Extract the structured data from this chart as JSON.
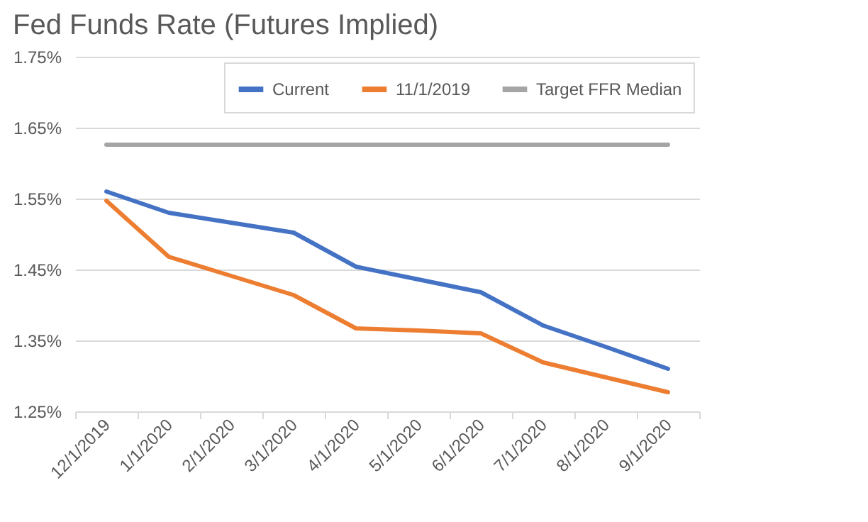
{
  "chart_data": {
    "type": "line",
    "title": "Fed Funds Rate (Futures Implied)",
    "categories": [
      "12/1/2019",
      "1/1/2020",
      "2/1/2020",
      "3/1/2020",
      "4/1/2020",
      "5/1/2020",
      "6/1/2020",
      "7/1/2020",
      "8/1/2020",
      "9/1/2020"
    ],
    "series": [
      {
        "name": "Current",
        "color": "#4472c4",
        "values": [
          1.56,
          1.53,
          1.516,
          1.502,
          1.454,
          1.436,
          1.418,
          1.371,
          1.341,
          1.31
        ]
      },
      {
        "name": "11/1/2019",
        "color": "#ed7d31",
        "values": [
          1.547,
          1.468,
          1.441,
          1.414,
          1.367,
          1.364,
          1.36,
          1.319,
          1.298,
          1.277
        ]
      },
      {
        "name": "Target FFR Median",
        "color": "#a5a5a5",
        "values": [
          1.626,
          1.626,
          1.626,
          1.626,
          1.626,
          1.626,
          1.626,
          1.626,
          1.626,
          1.626
        ]
      }
    ],
    "ylim": [
      1.25,
      1.75
    ],
    "yticks": [
      {
        "value": 1.25,
        "label": "1.25%"
      },
      {
        "value": 1.35,
        "label": "1.35%"
      },
      {
        "value": 1.45,
        "label": "1.45%"
      },
      {
        "value": 1.55,
        "label": "1.55%"
      },
      {
        "value": 1.65,
        "label": "1.65%"
      },
      {
        "value": 1.75,
        "label": "1.75%"
      }
    ],
    "grid": "y",
    "legend": "top right",
    "marker": "none",
    "line_style": "solid"
  }
}
